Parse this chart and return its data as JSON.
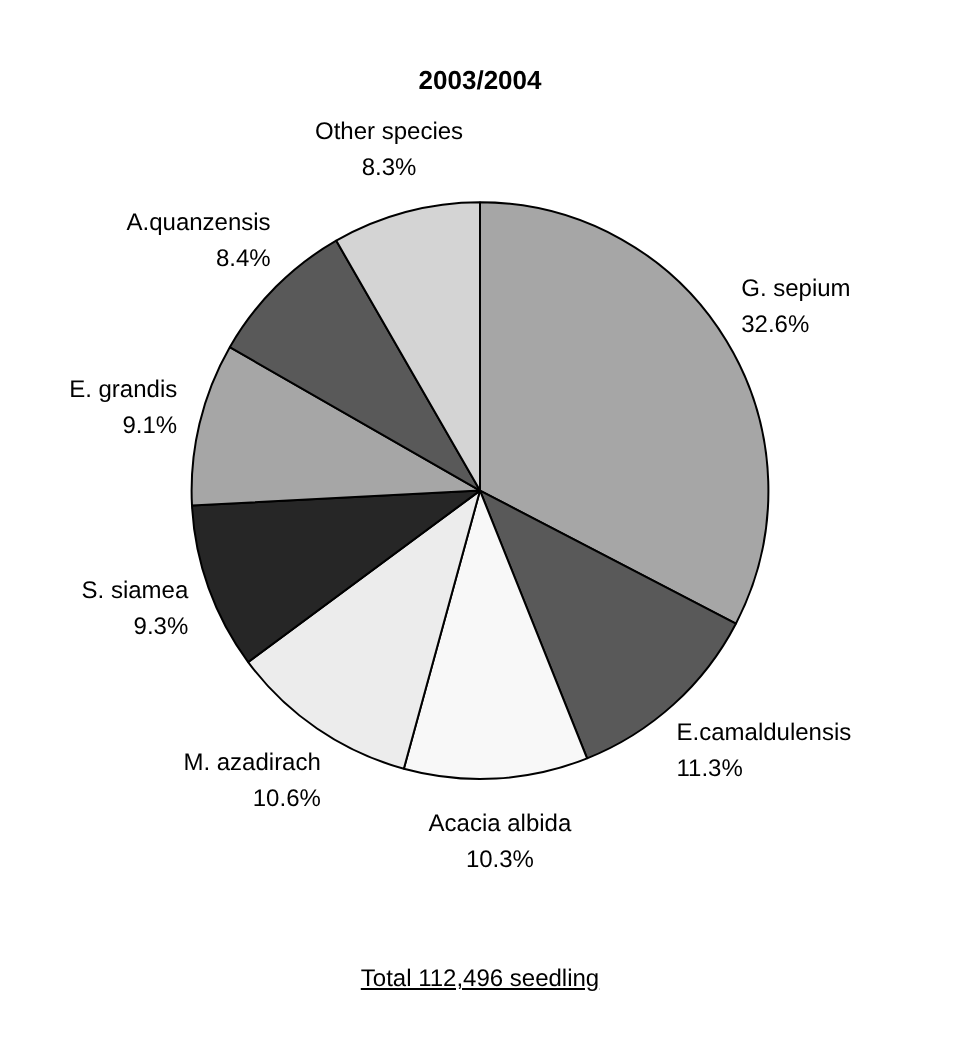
{
  "chart_data": {
    "type": "pie",
    "title": "2003/2004",
    "categories": [
      "G. sepium",
      "E.camaldulensis",
      "Acacia albida",
      "M. azadirach",
      "S. siamea",
      "E. grandis",
      "A.quanzensis",
      "Other species"
    ],
    "values": [
      32.6,
      11.3,
      10.3,
      10.6,
      9.3,
      9.1,
      8.4,
      8.3
    ],
    "value_labels": [
      "32.6%",
      "11.3%",
      "10.3%",
      "10.6%",
      "9.3%",
      "9.1%",
      "8.4%",
      "8.3%"
    ],
    "colors": [
      "#a6a6a6",
      "#595959",
      "#f8f8f8",
      "#ececec",
      "#262626",
      "#a6a6a6",
      "#595959",
      "#d4d4d4"
    ],
    "legend": false,
    "annotations": [
      "Total 112,496 seedling"
    ]
  }
}
